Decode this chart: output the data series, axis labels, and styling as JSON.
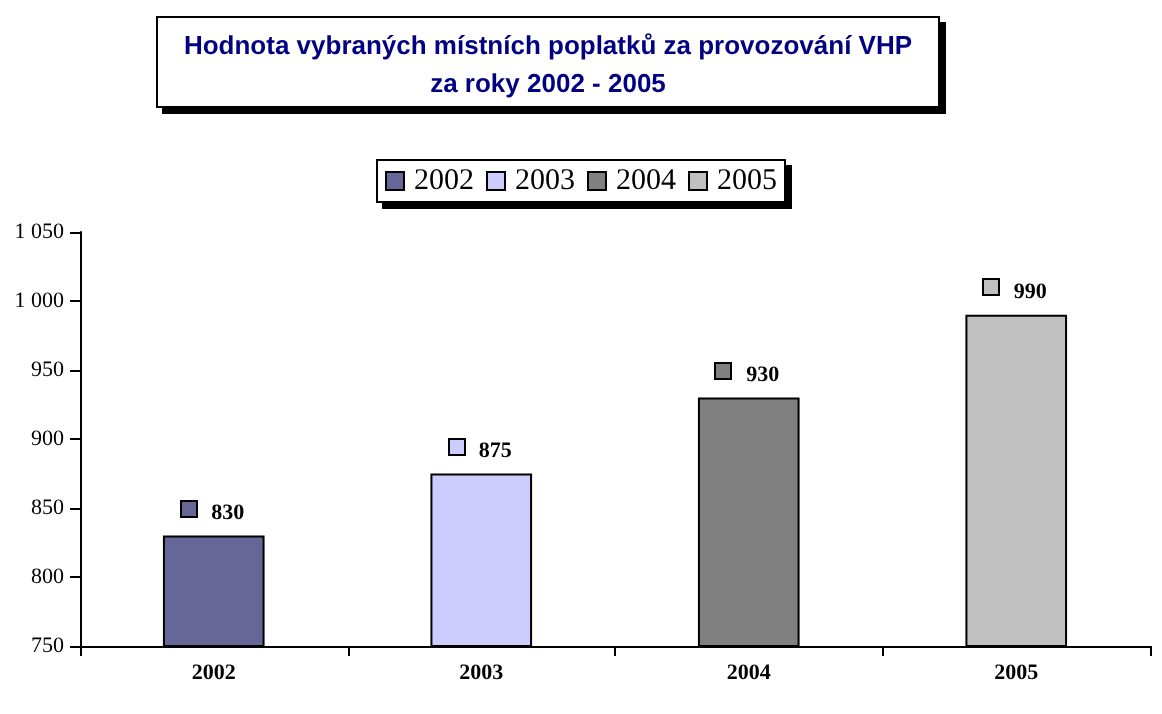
{
  "chart_data": {
    "type": "bar",
    "title": "Hodnota vybraných místních poplatků za provozování VHP\nza roky 2002 - 2005",
    "categories": [
      "2002",
      "2003",
      "2004",
      "2005"
    ],
    "series": [
      {
        "name": "2002",
        "color": "#666699",
        "values": [
          830,
          null,
          null,
          null
        ]
      },
      {
        "name": "2003",
        "color": "#ccccff",
        "values": [
          null,
          875,
          null,
          null
        ]
      },
      {
        "name": "2004",
        "color": "#808080",
        "values": [
          null,
          null,
          930,
          null
        ]
      },
      {
        "name": "2005",
        "color": "#c0c0c0",
        "values": [
          null,
          null,
          null,
          990
        ]
      }
    ],
    "ylim": [
      750,
      1050
    ],
    "yticks": [
      750,
      800,
      850,
      900,
      950,
      {
        "value": 1000,
        "label": "1 000"
      },
      {
        "value": 1050,
        "label": "1 050"
      }
    ],
    "grid": false,
    "legend": "top",
    "data_labels": true
  }
}
